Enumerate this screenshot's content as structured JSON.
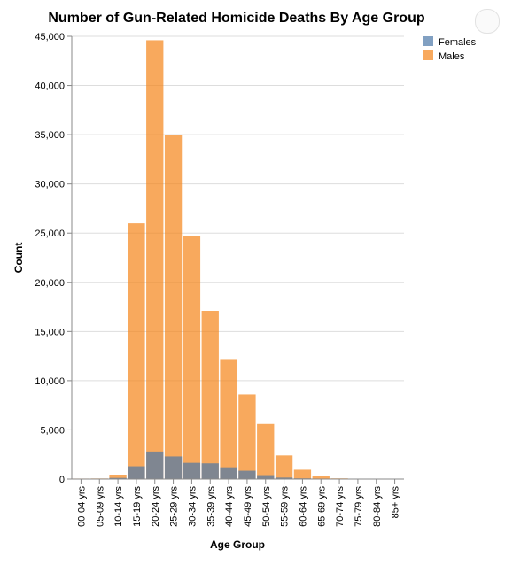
{
  "chart_data": {
    "type": "bar",
    "stacked": "overlay",
    "title": "Number of Gun-Related Homicide Deaths By Age Group",
    "xlabel": "Age Group",
    "ylabel": "Count",
    "ylim": [
      0,
      45000
    ],
    "yticks": [
      0,
      5000,
      10000,
      15000,
      20000,
      25000,
      30000,
      35000,
      40000,
      45000
    ],
    "ytick_labels": [
      "0",
      "5,000",
      "10,000",
      "15,000",
      "20,000",
      "25,000",
      "30,000",
      "35,000",
      "40,000",
      "45,000"
    ],
    "categories": [
      "00-04 yrs",
      "05-09 yrs",
      "10-14 yrs",
      "15-19 yrs",
      "20-24 yrs",
      "25-29 yrs",
      "30-34 yrs",
      "35-39 yrs",
      "40-44 yrs",
      "45-49 yrs",
      "50-54 yrs",
      "55-59 yrs",
      "60-64 yrs",
      "65-69 yrs",
      "70-74 yrs",
      "75-79 yrs",
      "80-84 yrs",
      "85+ yrs"
    ],
    "series": [
      {
        "name": "Males",
        "color": "#f58518",
        "values": [
          50,
          60,
          450,
          26000,
          44600,
          35000,
          24700,
          17100,
          12200,
          8600,
          5600,
          2400,
          950,
          280,
          70,
          30,
          20,
          10
        ]
      },
      {
        "name": "Females",
        "color": "#4c78a8",
        "values": [
          40,
          40,
          120,
          1300,
          2800,
          2300,
          1650,
          1600,
          1200,
          850,
          400,
          150,
          70,
          40,
          20,
          10,
          10,
          10
        ]
      }
    ],
    "legend": {
      "position": "top-right",
      "entries": [
        "Females",
        "Males"
      ]
    },
    "grid": true,
    "opacity": 0.7
  }
}
